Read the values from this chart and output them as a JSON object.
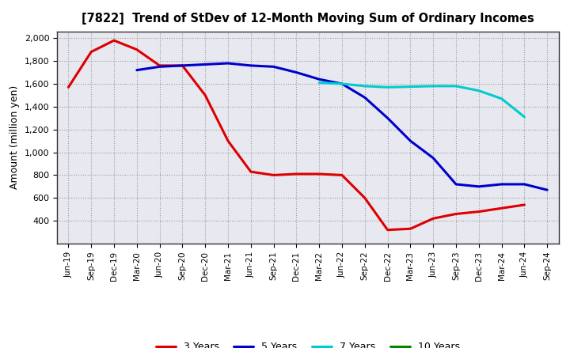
{
  "title": "[7822]  Trend of StDev of 12-Month Moving Sum of Ordinary Incomes",
  "ylabel": "Amount (million yen)",
  "ylim": [
    200,
    2060
  ],
  "yticks": [
    400,
    600,
    800,
    1000,
    1200,
    1400,
    1600,
    1800,
    2000
  ],
  "background_color": "#ffffff",
  "grid_color": "#999999",
  "x_labels": [
    "Jun-19",
    "Sep-19",
    "Dec-19",
    "Mar-20",
    "Jun-20",
    "Sep-20",
    "Dec-20",
    "Mar-21",
    "Jun-21",
    "Sep-21",
    "Dec-21",
    "Mar-22",
    "Jun-22",
    "Sep-22",
    "Dec-22",
    "Mar-23",
    "Jun-23",
    "Sep-23",
    "Dec-23",
    "Mar-24",
    "Jun-24",
    "Sep-24"
  ],
  "series": {
    "3 Years": {
      "color": "#dd0000",
      "data": [
        1570,
        1880,
        1980,
        1900,
        1760,
        1760,
        1500,
        1100,
        830,
        800,
        810,
        810,
        800,
        600,
        320,
        330,
        420,
        460,
        480,
        510,
        540,
        null
      ]
    },
    "5 Years": {
      "color": "#0000cc",
      "data": [
        null,
        null,
        null,
        1720,
        1750,
        1760,
        1770,
        1780,
        1760,
        1750,
        1700,
        1640,
        1600,
        1480,
        1300,
        1100,
        950,
        720,
        700,
        720,
        720,
        670
      ]
    },
    "7 Years": {
      "color": "#00cccc",
      "data": [
        null,
        null,
        null,
        null,
        null,
        null,
        null,
        null,
        null,
        null,
        null,
        1610,
        1600,
        1580,
        1570,
        1575,
        1580,
        1580,
        1540,
        1470,
        1310,
        null
      ]
    },
    "10 Years": {
      "color": "#008800",
      "data": [
        null,
        null,
        null,
        null,
        null,
        null,
        null,
        null,
        null,
        null,
        null,
        null,
        null,
        null,
        null,
        null,
        null,
        null,
        null,
        null,
        null,
        null
      ]
    }
  },
  "legend_order": [
    "3 Years",
    "5 Years",
    "7 Years",
    "10 Years"
  ],
  "line_width": 2.2
}
